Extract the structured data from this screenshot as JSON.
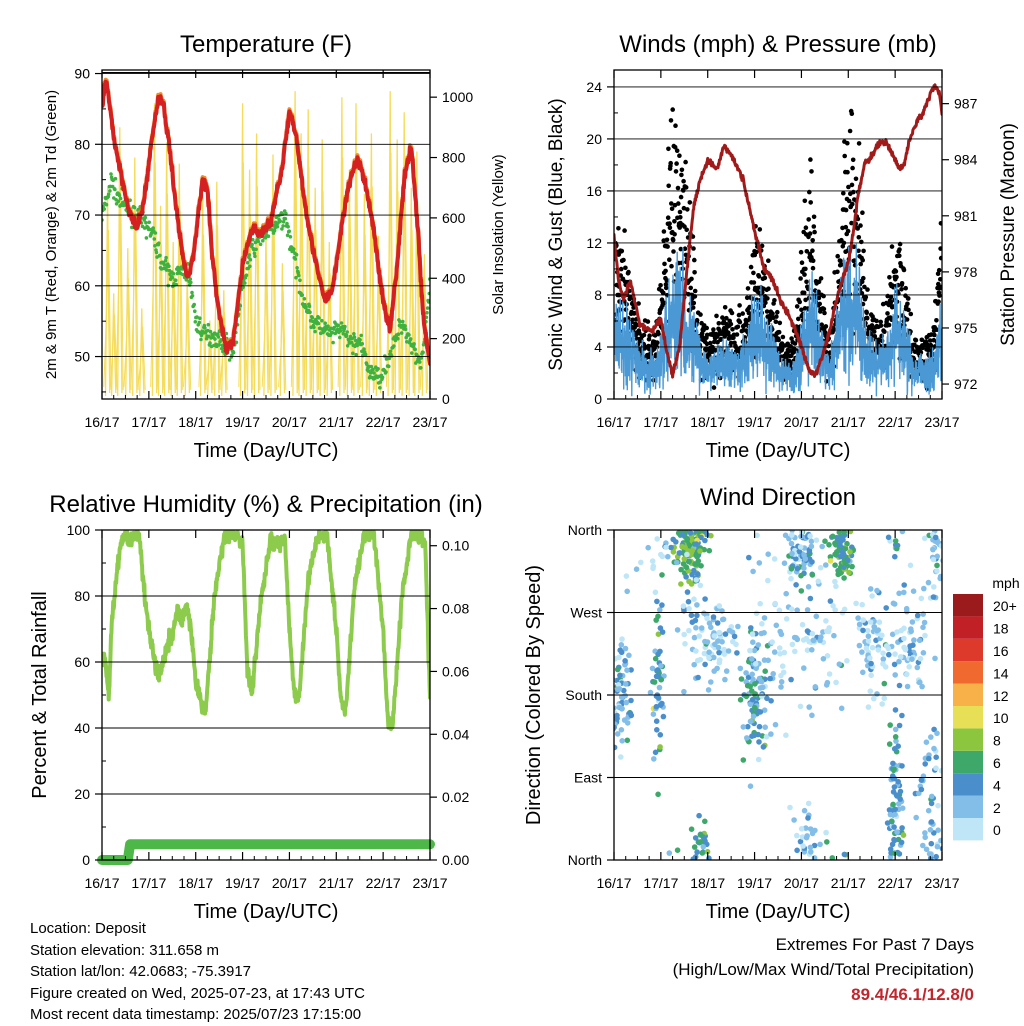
{
  "info": {
    "location": "Location: Deposit",
    "elevation": "Station elevation: 311.658 m",
    "latlon": "Station lat/lon: 42.0683; -75.3917",
    "created": "Figure created on Wed, 2025-07-23, at 17:43 UTC",
    "recent": "Most recent data timestamp: 2025/07/23 17:15:00"
  },
  "extremes": {
    "title": "Extremes For Past 7 Days",
    "subtitle": "(High/Low/Max Wind/Total Precipitation)",
    "values": "89.4/46.1/12.8/0"
  },
  "colors": {
    "temp_red": "#d42020",
    "temp_orange": "#f28c28",
    "dewpoint_green": "#3fb13f",
    "solar_yellow": "#f5dc5a",
    "gust_black": "#000000",
    "wind_blue": "#4a98d4",
    "pressure_maroon": "#a01a1a",
    "rh_green": "#8ccb4c",
    "precip_green": "#4db848"
  },
  "chart_data": [
    {
      "type": "line",
      "title": "Temperature (F)",
      "xlabel": "Time (Day/UTC)",
      "ylabel": "2m & 9m T (Red, Orange) & 2m Td (Green)",
      "y2label": "Solar Insolation (Yellow)",
      "x_ticks": [
        "16/17",
        "17/17",
        "18/17",
        "19/17",
        "20/17",
        "21/17",
        "22/17",
        "23/17"
      ],
      "xlim": [
        0,
        7
      ],
      "ylim": [
        44,
        90.5
      ],
      "y_ticks": [
        50,
        60,
        70,
        80,
        90
      ],
      "y2lim": [
        0,
        1090
      ],
      "y2_ticks": [
        0,
        200,
        400,
        600,
        800,
        1000
      ],
      "grid": "horizontal",
      "series": [
        {
          "key": "temperature",
          "color": "#d42020",
          "width": 4,
          "x": [
            0,
            0.08,
            0.15,
            0.25,
            0.4,
            0.6,
            0.75,
            0.9,
            1.05,
            1.2,
            1.3,
            1.45,
            1.6,
            1.75,
            1.85,
            1.95,
            2.05,
            2.15,
            2.25,
            2.35,
            2.5,
            2.65,
            2.8,
            3.0,
            3.2,
            3.4,
            3.6,
            3.85,
            4.0,
            4.15,
            4.3,
            4.45,
            4.6,
            4.75,
            4.9,
            5.0,
            5.15,
            5.3,
            5.45,
            5.6,
            5.8,
            5.95,
            6.05,
            6.15,
            6.3,
            6.45,
            6.6,
            6.75,
            6.85,
            6.95,
            7.0
          ],
          "y": [
            85,
            89,
            86,
            81,
            76,
            70,
            68,
            72,
            80,
            86.5,
            86,
            79,
            70,
            63,
            61.5,
            64,
            70,
            75,
            74,
            64,
            56,
            51,
            52,
            63,
            68,
            67.5,
            69,
            77,
            84.5,
            81,
            73,
            67,
            62,
            58,
            59,
            63,
            70,
            75,
            78,
            75,
            68,
            60,
            56,
            54,
            63,
            75,
            80,
            67,
            56,
            51,
            49
          ]
        },
        {
          "key": "dewpoint",
          "color": "#3fb13f",
          "width": 3,
          "x": [
            0,
            0.1,
            0.2,
            0.3,
            0.5,
            0.7,
            0.9,
            1.1,
            1.3,
            1.5,
            1.7,
            1.85,
            2.0,
            2.2,
            2.4,
            2.6,
            2.8,
            3.0,
            3.2,
            3.4,
            3.6,
            3.8,
            3.9,
            4.1,
            4.3,
            4.5,
            4.7,
            4.9,
            5.1,
            5.3,
            5.5,
            5.7,
            5.9,
            6.0,
            6.2,
            6.4,
            6.6,
            6.8,
            6.9,
            7.0
          ],
          "y": [
            70,
            72,
            75,
            73,
            71,
            70,
            69,
            67,
            63,
            61,
            62,
            62,
            55,
            53,
            53,
            52,
            50.5,
            60,
            65,
            67,
            68,
            69,
            70,
            64,
            58,
            55,
            54,
            53,
            54,
            52,
            52,
            48,
            47,
            48,
            51,
            55,
            52,
            49,
            53,
            60
          ]
        },
        {
          "key": "solar",
          "axis": "right",
          "color": "#f5dc5a",
          "width": 1.3,
          "peaks_x": [
            0.12,
            0.25,
            0.38,
            0.55,
            0.7,
            0.85,
            1.12,
            1.25,
            1.38,
            1.52,
            1.65,
            1.82,
            2.15,
            2.3,
            2.45,
            2.6,
            3.0,
            3.15,
            3.3,
            3.5,
            3.65,
            3.85,
            4.12,
            4.25,
            4.4,
            4.55,
            4.7,
            4.85,
            5.12,
            5.28,
            5.42,
            5.6,
            5.75,
            5.9,
            6.15,
            6.3,
            6.45,
            6.6,
            6.72,
            6.88
          ],
          "peaks_y": [
            700,
            350,
            900,
            500,
            800,
            300,
            980,
            640,
            850,
            520,
            780,
            420,
            680,
            260,
            720,
            360,
            980,
            760,
            880,
            560,
            810,
            450,
            1020,
            880,
            960,
            700,
            860,
            520,
            1000,
            760,
            980,
            680,
            880,
            540,
            1020,
            860,
            950,
            700,
            820,
            480
          ]
        }
      ]
    },
    {
      "type": "scatter",
      "title": "Winds (mph) & Pressure (mb)",
      "xlabel": "Time (Day/UTC)",
      "ylabel": "Sonic Wind & Gust (Blue, Black)",
      "y2label": "Station Pressure (Maroon)",
      "x_ticks": [
        "16/17",
        "17/17",
        "18/17",
        "19/17",
        "20/17",
        "21/17",
        "22/17",
        "23/17"
      ],
      "xlim": [
        0,
        7
      ],
      "ylim": [
        0,
        25.3
      ],
      "y_ticks": [
        0,
        4,
        8,
        12,
        16,
        20,
        24
      ],
      "y2lim": [
        971.2,
        988.8
      ],
      "y2_ticks": [
        972,
        975,
        978,
        981,
        984,
        987
      ],
      "grid": "horizontal",
      "activity": {
        "x": [
          0,
          0.3,
          0.6,
          0.9,
          1.0,
          1.2,
          1.4,
          1.6,
          1.8,
          2.0,
          2.2,
          2.4,
          2.6,
          2.8,
          3.0,
          3.2,
          3.4,
          3.6,
          3.8,
          4.0,
          4.2,
          4.4,
          4.6,
          4.8,
          5.0,
          5.2,
          5.4,
          5.6,
          5.8,
          6.0,
          6.2,
          6.4,
          6.6,
          6.8,
          7.0
        ],
        "wind": [
          5,
          4,
          2.5,
          2,
          3.5,
          6.5,
          7,
          5,
          3,
          2,
          2.5,
          3,
          2.5,
          3,
          5,
          4.5,
          3,
          2,
          1.5,
          3.5,
          6,
          3.5,
          2,
          5,
          7,
          6,
          3,
          2.5,
          3,
          5,
          4,
          2,
          2,
          2.5,
          5
        ],
        "gust": [
          9,
          7,
          4,
          3.5,
          7,
          14,
          15,
          11,
          5,
          3.5,
          4,
          5.5,
          4,
          5,
          9,
          8,
          5,
          3,
          3,
          7,
          13,
          6.5,
          3.5,
          9,
          15,
          13,
          5,
          4,
          5,
          9,
          7,
          3,
          3,
          3.5,
          9
        ]
      },
      "series": [
        {
          "key": "pressure",
          "axis": "right",
          "color": "#a01a1a",
          "width": 3,
          "x": [
            0,
            0.1,
            0.2,
            0.35,
            0.55,
            0.8,
            1.0,
            1.1,
            1.25,
            1.4,
            1.55,
            1.7,
            1.85,
            2.0,
            2.2,
            2.35,
            2.55,
            2.75,
            3.0,
            3.2,
            3.4,
            3.55,
            3.7,
            3.85,
            4.0,
            4.15,
            4.3,
            4.45,
            4.6,
            4.75,
            4.9,
            5.0,
            5.1,
            5.2,
            5.35,
            5.5,
            5.65,
            5.8,
            5.9,
            6.0,
            6.1,
            6.2,
            6.3,
            6.45,
            6.6,
            6.75,
            6.85,
            6.95,
            7.0
          ],
          "y": [
            980,
            977.5,
            976.5,
            977.5,
            975.2,
            974.8,
            975.5,
            974,
            972.5,
            974,
            978,
            981.5,
            983,
            984,
            983.5,
            984.8,
            984,
            983,
            980.2,
            978.2,
            977.5,
            976.5,
            975.8,
            975,
            974,
            972.8,
            972.5,
            973.5,
            974.8,
            976.5,
            977.8,
            978.5,
            980,
            982,
            983.8,
            984.2,
            984.8,
            985,
            984.5,
            984,
            983.5,
            983.8,
            985,
            986,
            986.5,
            987.5,
            988,
            987.5,
            986.5
          ]
        }
      ]
    },
    {
      "type": "line",
      "title": "Relative Humidity (%) & Precipitation (in)",
      "xlabel": "Time (Day/UTC)",
      "ylabel": "Percent & Total Rainfall",
      "x_ticks": [
        "16/17",
        "17/17",
        "18/17",
        "19/17",
        "20/17",
        "21/17",
        "22/17",
        "23/17"
      ],
      "xlim": [
        0,
        7
      ],
      "ylim": [
        0,
        100
      ],
      "y_ticks": [
        0,
        20,
        40,
        60,
        80,
        100
      ],
      "y2lim": [
        0,
        0.105
      ],
      "y2_ticks": [
        0.0,
        0.02,
        0.04,
        0.06,
        0.08,
        0.1
      ],
      "y2_tick_labels": [
        "0.00",
        "0.02",
        "0.04",
        "0.06",
        "0.08",
        "0.10"
      ],
      "grid": "horizontal",
      "series": [
        {
          "key": "rh",
          "color": "#8ccb4c",
          "width": 4,
          "x": [
            0,
            0.05,
            0.15,
            0.2,
            0.3,
            0.4,
            0.5,
            0.6,
            0.7,
            0.8,
            0.9,
            1.0,
            1.1,
            1.2,
            1.3,
            1.4,
            1.5,
            1.6,
            1.7,
            1.8,
            1.9,
            2.0,
            2.2,
            2.4,
            2.6,
            2.8,
            3.0,
            3.1,
            3.2,
            3.4,
            3.6,
            3.8,
            3.9,
            4.0,
            4.1,
            4.2,
            4.4,
            4.6,
            4.8,
            5.0,
            5.1,
            5.2,
            5.4,
            5.6,
            5.8,
            6.0,
            6.1,
            6.2,
            6.4,
            6.6,
            6.8,
            6.9,
            7.0
          ],
          "y": [
            60,
            62,
            50,
            70,
            85,
            95,
            99,
            97,
            99,
            98,
            82,
            70,
            62,
            56,
            60,
            66,
            68,
            76,
            72,
            78,
            70,
            55,
            43,
            80,
            98,
            99,
            96,
            58,
            50,
            80,
            97,
            96,
            97,
            70,
            52,
            48,
            85,
            98,
            99,
            70,
            48,
            45,
            85,
            98,
            99,
            70,
            42,
            40,
            80,
            98,
            99,
            95,
            48
          ]
        },
        {
          "key": "precip",
          "axis": "right",
          "color": "#4db848",
          "width": 10,
          "x": [
            0,
            0.55,
            0.6,
            7.0
          ],
          "y": [
            0,
            0,
            0.005,
            0.005
          ]
        }
      ]
    },
    {
      "type": "scatter",
      "title": "Wind Direction",
      "xlabel": "Time (Day/UTC)",
      "ylabel": "Direction (Colored By Speed)",
      "x_ticks": [
        "16/17",
        "17/17",
        "18/17",
        "19/17",
        "20/17",
        "21/17",
        "22/17",
        "23/17"
      ],
      "xlim": [
        0,
        7
      ],
      "ylim": [
        0,
        360
      ],
      "y_tick_values": [
        0,
        90,
        180,
        270,
        360
      ],
      "y_tick_labels": [
        "North",
        "East",
        "South",
        "West",
        "North"
      ],
      "grid": "horizontal",
      "colorbar": {
        "unit": "mph",
        "labels": [
          "0",
          "2",
          "4",
          "6",
          "8",
          "10",
          "12",
          "14",
          "16",
          "18",
          "20+"
        ],
        "colors": [
          "#bfe6f6",
          "#82bee8",
          "#4a8fcb",
          "#3ea86a",
          "#8cc63f",
          "#e7df55",
          "#f8b048",
          "#f06a30",
          "#de3a2b",
          "#c22027",
          "#9b1a1c"
        ]
      },
      "clusters": [
        {
          "x": 0.15,
          "dir": 180,
          "sx": 0.12,
          "sdir": 28,
          "n": 70,
          "spd": 3
        },
        {
          "x": 0.95,
          "dir": 205,
          "sx": 0.07,
          "sdir": 50,
          "n": 50,
          "spd": 4
        },
        {
          "x": 1.65,
          "dir": 335,
          "sx": 0.18,
          "sdir": 16,
          "n": 110,
          "spd": 6
        },
        {
          "x": 1.85,
          "dir": 15,
          "sx": 0.12,
          "sdir": 15,
          "n": 30,
          "spd": 5
        },
        {
          "x": 2.05,
          "dir": 245,
          "sx": 0.3,
          "sdir": 22,
          "n": 90,
          "spd": 1.5
        },
        {
          "x": 3.0,
          "dir": 175,
          "sx": 0.12,
          "sdir": 30,
          "n": 80,
          "spd": 4
        },
        {
          "x": 3.25,
          "dir": 210,
          "sx": 0.25,
          "sdir": 40,
          "n": 40,
          "spd": 1.5
        },
        {
          "x": 4.0,
          "dir": 330,
          "sx": 0.15,
          "sdir": 18,
          "n": 60,
          "spd": 3
        },
        {
          "x": 4.1,
          "dir": 20,
          "sx": 0.2,
          "sdir": 20,
          "n": 30,
          "spd": 2
        },
        {
          "x": 4.85,
          "dir": 335,
          "sx": 0.14,
          "sdir": 14,
          "n": 80,
          "spd": 5.5
        },
        {
          "x": 4.4,
          "dir": 240,
          "sx": 0.25,
          "sdir": 30,
          "n": 55,
          "spd": 1.5
        },
        {
          "x": 5.6,
          "dir": 240,
          "sx": 0.2,
          "sdir": 25,
          "n": 70,
          "spd": 1.5
        },
        {
          "x": 6.0,
          "dir": 60,
          "sx": 0.08,
          "sdir": 50,
          "n": 85,
          "spd": 4
        },
        {
          "x": 6.3,
          "dir": 240,
          "sx": 0.2,
          "sdir": 30,
          "n": 60,
          "spd": 2
        },
        {
          "x": 6.75,
          "dir": 60,
          "sx": 0.15,
          "sdir": 50,
          "n": 50,
          "spd": 2.5
        },
        {
          "x": 6.85,
          "dir": 330,
          "sx": 0.1,
          "sdir": 25,
          "n": 30,
          "spd": 2
        },
        {
          "x": 3.5,
          "dir": 300,
          "sx": 0.6,
          "sdir": 60,
          "n": 40,
          "spd": 0.5
        },
        {
          "x": 1.0,
          "dir": 330,
          "sx": 0.4,
          "sdir": 20,
          "n": 25,
          "spd": 1.5
        }
      ]
    }
  ]
}
